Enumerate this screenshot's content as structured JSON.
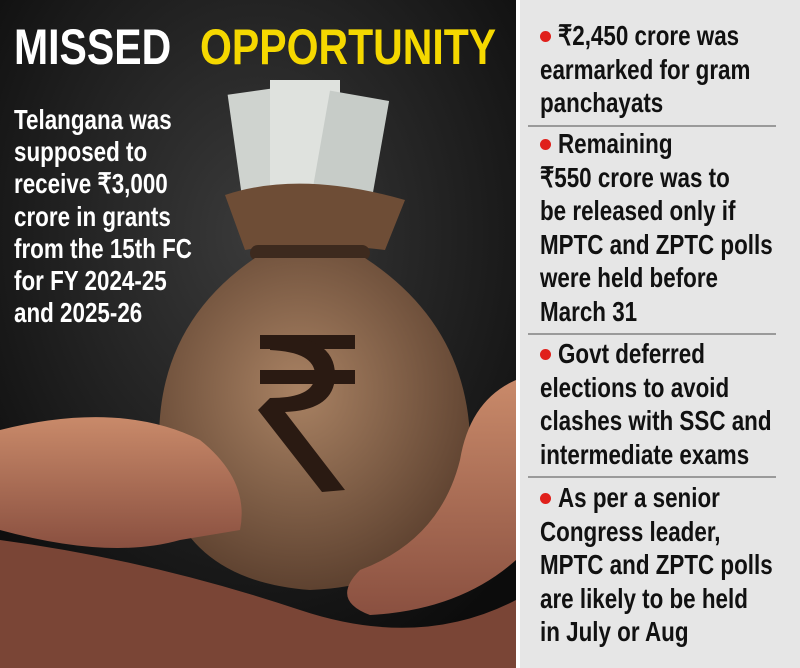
{
  "header": {
    "title_part1": "MISSED",
    "title_part2": "OPPORTUNITY"
  },
  "intro": {
    "lines": [
      "Telangana was",
      "supposed to",
      "receive ₹3,000",
      "crore in grants",
      "from the 15th FC",
      "for FY 2024-25",
      "and 2025-26"
    ]
  },
  "bullets": [
    {
      "lines": [
        "₹2,450 crore was",
        "earmarked for gram",
        "panchayats"
      ]
    },
    {
      "lines": [
        "Remaining",
        "₹550 crore was to",
        "be released only if",
        "MPTC and ZPTC polls",
        "were held before",
        "March 31"
      ]
    },
    {
      "lines": [
        "Govt deferred",
        "elections to avoid",
        "clashes with SSC and",
        "intermediate exams"
      ]
    },
    {
      "lines": [
        "As per a senior",
        "Congress leader,",
        "MPTC and ZPTC polls",
        "are likely to be held",
        "in July or Aug"
      ]
    }
  ]
}
